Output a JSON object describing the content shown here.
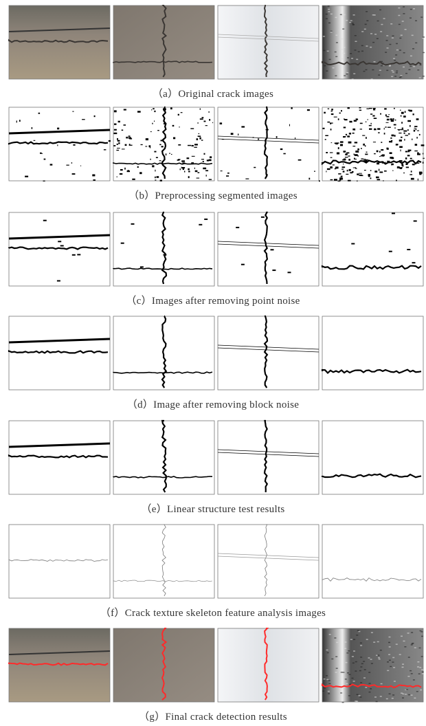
{
  "figure": {
    "rows": [
      {
        "caption": "（a）Original crack images"
      },
      {
        "caption": "（b）Preprocessing segmented images"
      },
      {
        "caption": "（c）Images after removing point noise"
      },
      {
        "caption": "（d）Image after removing block noise"
      },
      {
        "caption": "（e）Linear structure test results"
      },
      {
        "caption": "（f）Crack texture skeleton feature analysis images"
      },
      {
        "caption": "（g）Final crack detection results"
      }
    ]
  }
}
